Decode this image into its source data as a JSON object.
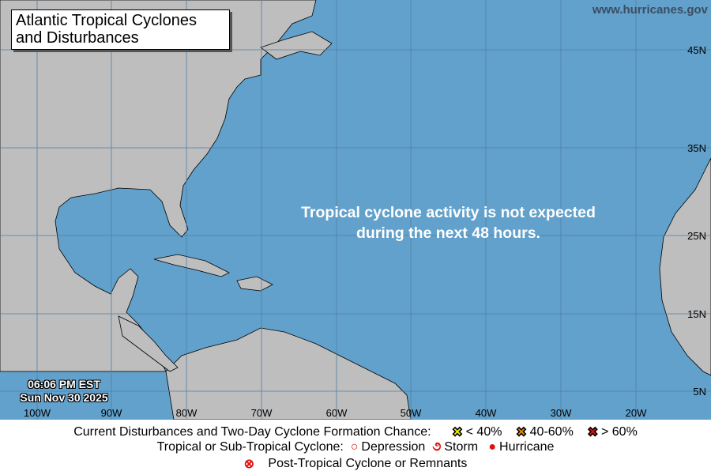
{
  "title": "Atlantic Tropical Cyclones and Disturbances",
  "title_lines": [
    "Atlantic Tropical Cyclones",
    "and Disturbances"
  ],
  "website": "www.hurricanes.gov",
  "message_lines": [
    "Tropical cyclone activity is not expected",
    "during the next 48 hours."
  ],
  "timestamp": {
    "time": "06:06 PM EST",
    "date": "Sun Nov 30 2025"
  },
  "longitude_labels": [
    "100W",
    "90W",
    "80W",
    "70W",
    "60W",
    "50W",
    "40W",
    "30W",
    "20W"
  ],
  "latitude_labels": [
    "45N",
    "35N",
    "25N",
    "15N",
    "5N"
  ],
  "colors": {
    "ocean": "#62a1cb",
    "land": "#bebebe",
    "low": "#f5f500",
    "medium": "#f08c00",
    "high": "#e01010",
    "cyclone": "#e01010"
  },
  "legend": {
    "formation_label": "Current Disturbances and Two-Day Cyclone Formation Chance:",
    "low": "< 40%",
    "medium": "40-60%",
    "high": "> 60%",
    "cyclone_label": "Tropical or Sub-Tropical Cyclone:",
    "depression": "Depression",
    "storm": "Storm",
    "hurricane": "Hurricane",
    "post_tropical": "Post-Tropical Cyclone or Remnants"
  }
}
